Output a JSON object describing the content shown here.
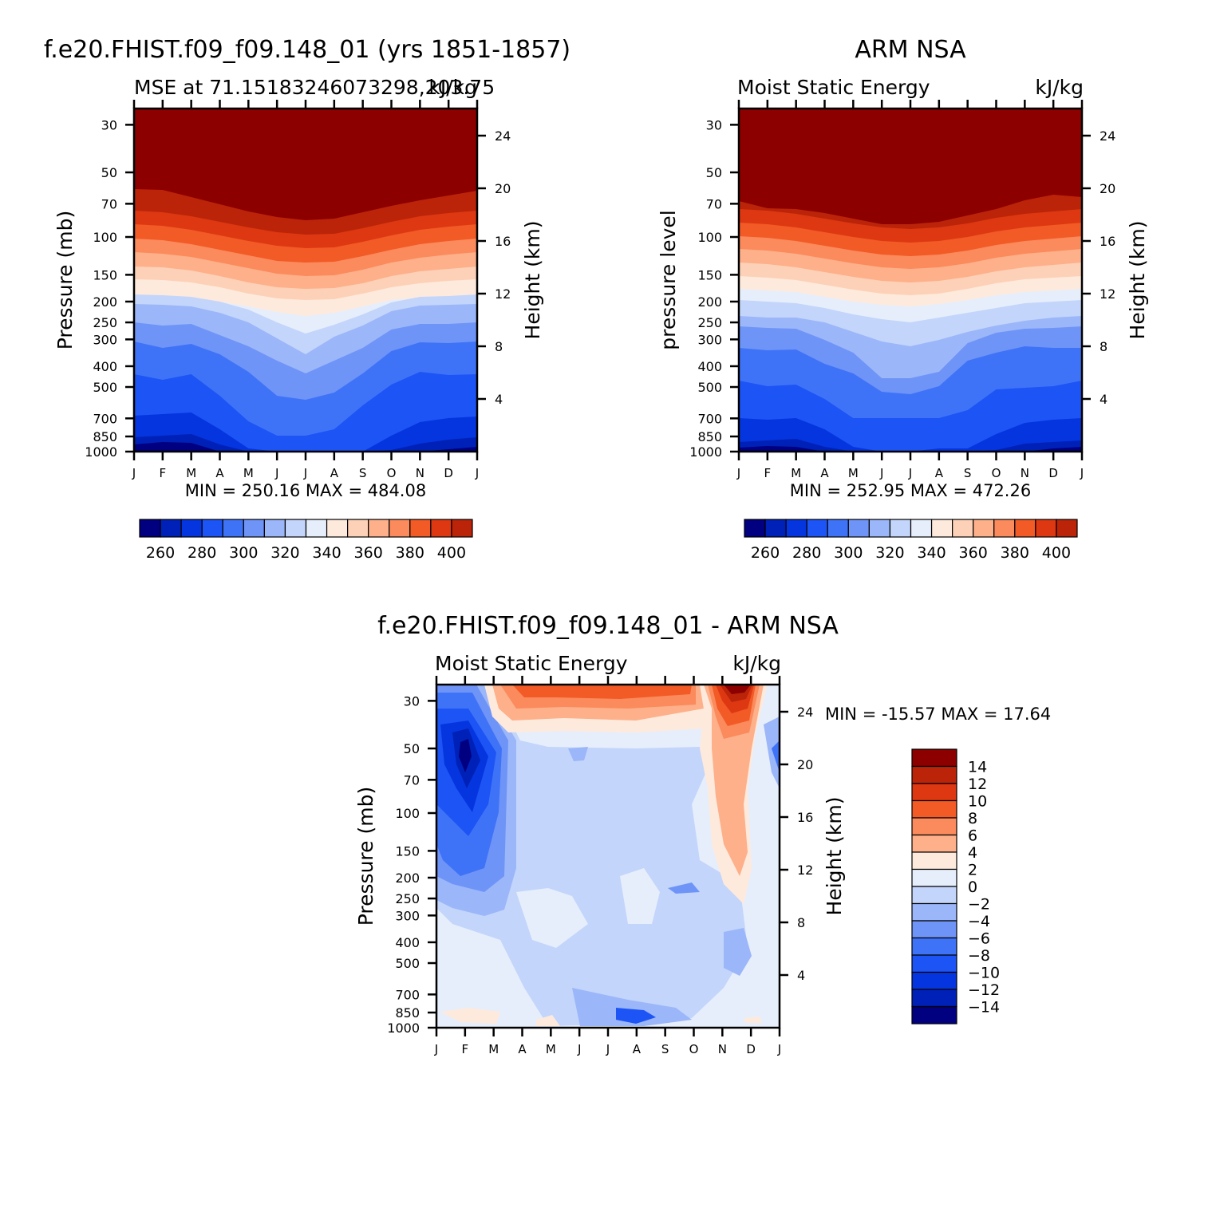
{
  "chart_data": [
    {
      "type": "heatmap",
      "title": "f.e20.FHIST.f09_f09.148_01 (yrs 1851-1857)",
      "subtitle_left": "MSE at 71.15183246073298,203.75",
      "subtitle_right": "kJ/kg",
      "ylabel": "Pressure (mb)",
      "ylabel_right": "Height (km)",
      "months": [
        "J",
        "F",
        "M",
        "A",
        "M",
        "J",
        "J",
        "A",
        "S",
        "O",
        "N",
        "D",
        "J"
      ],
      "pressure_ticks": [
        "30",
        "50",
        "70",
        "100",
        "150",
        "200",
        "250",
        "300",
        "400",
        "500",
        "700",
        "850",
        "1000"
      ],
      "height_ticks": [
        "24",
        "20",
        "16",
        "12",
        "8",
        "4"
      ],
      "min_max_text": "MIN = 250.16 MAX = 484.08",
      "colorbar": {
        "orientation": "horizontal",
        "labels": [
          "260",
          "280",
          "300",
          "320",
          "340",
          "360",
          "380",
          "400"
        ],
        "levels": [
          255,
          260,
          265,
          270,
          275,
          280,
          285,
          290,
          295,
          300,
          305,
          310,
          315,
          320,
          325,
          330,
          335,
          340,
          345,
          350,
          355,
          360,
          365,
          370,
          375,
          380,
          385,
          390,
          395,
          400
        ],
        "colors": [
          "#000080",
          "#0021b7",
          "#0535de",
          "#1d54f5",
          "#3f73f7",
          "#6f94f7",
          "#9bb6f9",
          "#c3d5fb",
          "#e6eefb",
          "#feeadc",
          "#fdd1b7",
          "#fdb08a",
          "#fb8a5c",
          "#f25a26",
          "#dd3812",
          "#bb2409",
          "#8c0000"
        ]
      },
      "fields_note_levels_kjkg": [
        250,
        484
      ]
    },
    {
      "type": "heatmap",
      "title": "ARM NSA",
      "subtitle_left": "Moist Static Energy",
      "subtitle_right": "kJ/kg",
      "ylabel": "pressure level",
      "ylabel_right": "Height (km)",
      "months": [
        "J",
        "F",
        "M",
        "A",
        "M",
        "J",
        "J",
        "A",
        "S",
        "O",
        "N",
        "D",
        "J"
      ],
      "pressure_ticks": [
        "30",
        "50",
        "70",
        "100",
        "150",
        "200",
        "250",
        "300",
        "400",
        "500",
        "700",
        "850",
        "1000"
      ],
      "height_ticks": [
        "24",
        "20",
        "16",
        "12",
        "8",
        "4"
      ],
      "min_max_text": "MIN = 252.95 MAX = 472.26",
      "colorbar": {
        "orientation": "horizontal",
        "labels": [
          "260",
          "280",
          "300",
          "320",
          "340",
          "360",
          "380",
          "400"
        ]
      }
    },
    {
      "type": "heatmap",
      "title": "f.e20.FHIST.f09_f09.148_01 - ARM NSA",
      "subtitle_left": "Moist Static Energy",
      "subtitle_right": "kJ/kg",
      "ylabel": "Pressure (mb)",
      "ylabel_right": "Height (km)",
      "months": [
        "J",
        "F",
        "M",
        "A",
        "M",
        "J",
        "J",
        "A",
        "S",
        "O",
        "N",
        "D",
        "J"
      ],
      "pressure_ticks": [
        "30",
        "50",
        "70",
        "100",
        "150",
        "200",
        "250",
        "300",
        "400",
        "500",
        "700",
        "850",
        "1000"
      ],
      "height_ticks": [
        "24",
        "20",
        "16",
        "12",
        "8",
        "4"
      ],
      "min_max_text": "MIN = -15.57 MAX =  17.64",
      "colorbar": {
        "orientation": "vertical",
        "labels": [
          "14",
          "12",
          "10",
          "8",
          "6",
          "4",
          "2",
          "0",
          "-2",
          "-4",
          "-6",
          "-8",
          "-10",
          "-12",
          "-14"
        ],
        "colors_top_to_bottom": [
          "#8c0000",
          "#bb2409",
          "#dd3812",
          "#f25a26",
          "#fb8a5c",
          "#fdb08a",
          "#feeadc",
          "#e6eefb",
          "#c3d5fb",
          "#9bb6f9",
          "#6f94f7",
          "#3f73f7",
          "#1d54f5",
          "#0535de",
          "#0021b7",
          "#000080"
        ]
      },
      "difference_field_note": "negative (blue) over most of the domain, strong negative near Feb 30-150 mb, positive (red) near 30 mb Mar-Oct and Nov-Dec"
    }
  ]
}
